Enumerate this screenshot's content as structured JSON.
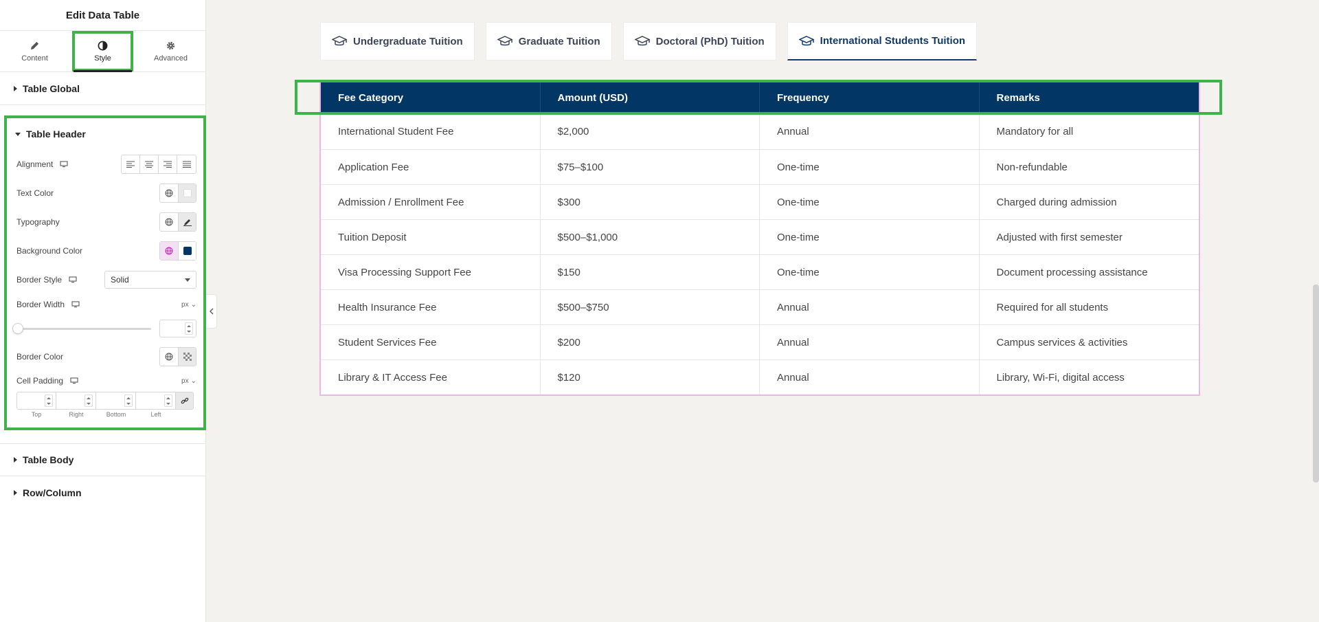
{
  "sidebar": {
    "title": "Edit Data Table",
    "tabs": [
      {
        "label": "Content",
        "icon": "pencil-icon"
      },
      {
        "label": "Style",
        "icon": "half-circle-icon"
      },
      {
        "label": "Advanced",
        "icon": "gear-icon"
      }
    ],
    "sections": {
      "table_global": "Table Global",
      "table_header": "Table Header",
      "table_body": "Table Body",
      "row_column": "Row/Column"
    },
    "header_controls": {
      "alignment_label": "Alignment",
      "text_color_label": "Text Color",
      "text_color_value": "#ffffff",
      "typography_label": "Typography",
      "background_color_label": "Background Color",
      "background_color_value": "#023665",
      "border_style_label": "Border Style",
      "border_style_value": "Solid",
      "border_width_label": "Border Width",
      "border_width_unit": "px",
      "border_width_value": "",
      "border_color_label": "Border Color",
      "cell_padding_label": "Cell Padding",
      "cell_padding_unit": "px",
      "padding_labels": [
        "Top",
        "Right",
        "Bottom",
        "Left"
      ]
    }
  },
  "tabs": [
    {
      "label": "Undergraduate Tuition",
      "active": false
    },
    {
      "label": "Graduate Tuition",
      "active": false
    },
    {
      "label": "Doctoral (PhD) Tuition",
      "active": false
    },
    {
      "label": "International Students Tuition",
      "active": true
    }
  ],
  "table": {
    "columns": [
      "Fee Category",
      "Amount (USD)",
      "Frequency",
      "Remarks"
    ],
    "rows": [
      [
        "International Student Fee",
        "$2,000",
        "Annual",
        "Mandatory for all"
      ],
      [
        "Application Fee",
        "$75–$100",
        "One-time",
        "Non-refundable"
      ],
      [
        "Admission / Enrollment Fee",
        "$300",
        "One-time",
        "Charged during admission"
      ],
      [
        "Tuition Deposit",
        "$500–$1,000",
        "One-time",
        "Adjusted with first semester"
      ],
      [
        "Visa Processing Support Fee",
        "$150",
        "One-time",
        "Document processing assistance"
      ],
      [
        "Health Insurance Fee",
        "$500–$750",
        "Annual",
        "Required for all students"
      ],
      [
        "Student Services Fee",
        "$200",
        "Annual",
        "Campus services & activities"
      ],
      [
        "Library & IT Access Fee",
        "$120",
        "Annual",
        "Library, Wi-Fi, digital access"
      ]
    ]
  },
  "colors": {
    "header_bg": "#023665",
    "highlight": "#3db34a",
    "table_border": "#e9b8e6",
    "active_tab": "#123a68"
  }
}
